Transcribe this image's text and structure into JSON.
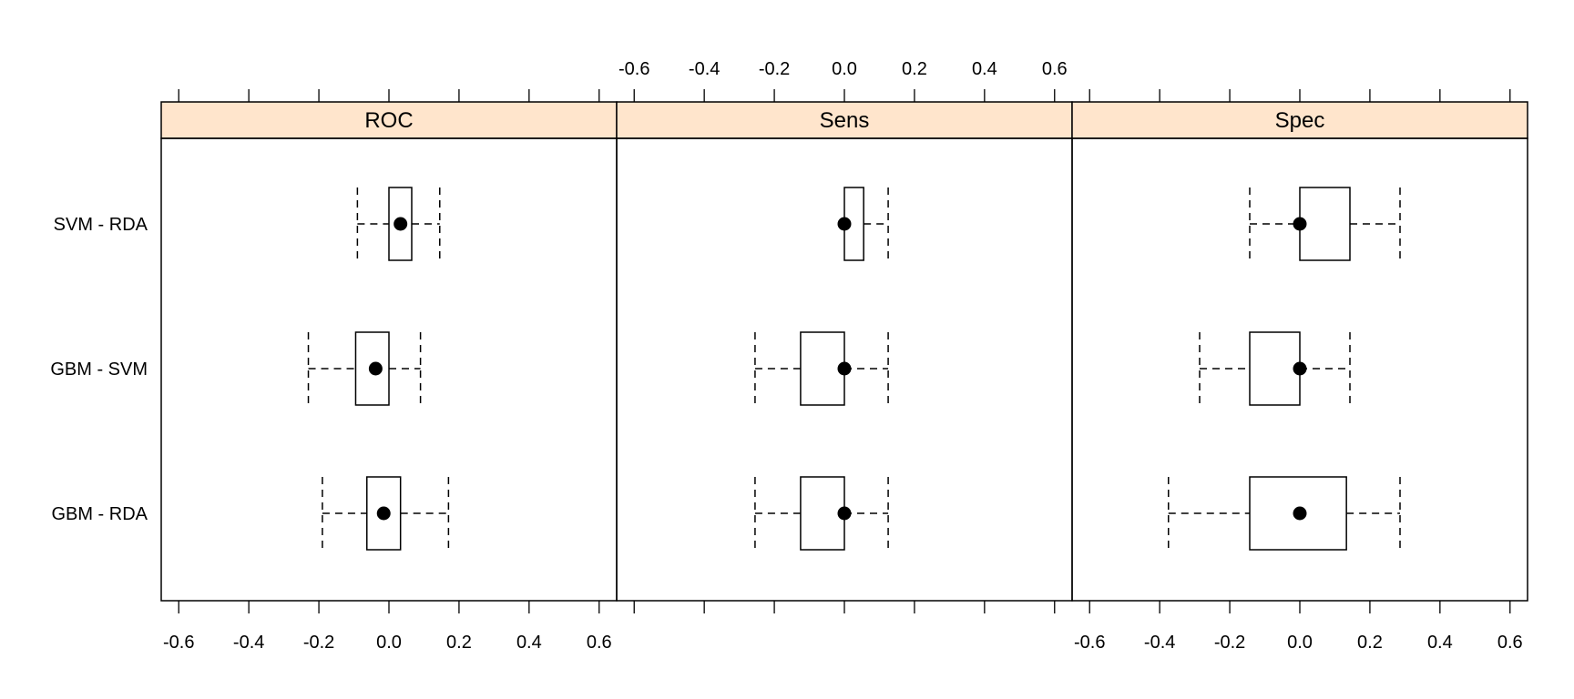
{
  "chart_data": {
    "type": "boxplot",
    "title": "",
    "xlabel": "",
    "ylabel": "",
    "xlim": [
      -0.65,
      0.65
    ],
    "ticks": [
      -0.6,
      -0.4,
      -0.2,
      0.0,
      0.2,
      0.4,
      0.6
    ],
    "tick_labels": [
      "-0.6",
      "-0.4",
      "-0.2",
      "0.0",
      "0.2",
      "0.4",
      "0.6"
    ],
    "categories": [
      "SVM - RDA",
      "GBM - SVM",
      "GBM - RDA"
    ],
    "strip_color": "#ffe5cc",
    "panels": [
      {
        "name": "ROC",
        "boxes": [
          {
            "category": "SVM - RDA",
            "min": -0.09,
            "q1": 0.0,
            "median": 0.033,
            "q3": 0.065,
            "max": 0.145
          },
          {
            "category": "GBM - SVM",
            "min": -0.23,
            "q1": -0.095,
            "median": -0.038,
            "q3": 0.0,
            "max": 0.09
          },
          {
            "category": "GBM - RDA",
            "min": -0.19,
            "q1": -0.063,
            "median": -0.015,
            "q3": 0.033,
            "max": 0.17
          }
        ]
      },
      {
        "name": "Sens",
        "boxes": [
          {
            "category": "SVM - RDA",
            "min": 0.0,
            "q1": 0.0,
            "median": 0.0,
            "q3": 0.055,
            "max": 0.125
          },
          {
            "category": "GBM - SVM",
            "min": -0.255,
            "q1": -0.125,
            "median": 0.0,
            "q3": 0.0,
            "max": 0.125
          },
          {
            "category": "GBM - RDA",
            "min": -0.255,
            "q1": -0.125,
            "median": 0.0,
            "q3": 0.0,
            "max": 0.125
          }
        ]
      },
      {
        "name": "Spec",
        "boxes": [
          {
            "category": "SVM - RDA",
            "min": -0.143,
            "q1": 0.0,
            "median": 0.0,
            "q3": 0.143,
            "max": 0.286
          },
          {
            "category": "GBM - SVM",
            "min": -0.286,
            "q1": -0.143,
            "median": 0.0,
            "q3": 0.0,
            "max": 0.143
          },
          {
            "category": "GBM - RDA",
            "min": -0.375,
            "q1": -0.143,
            "median": 0.0,
            "q3": 0.133,
            "max": 0.286
          }
        ]
      }
    ]
  }
}
